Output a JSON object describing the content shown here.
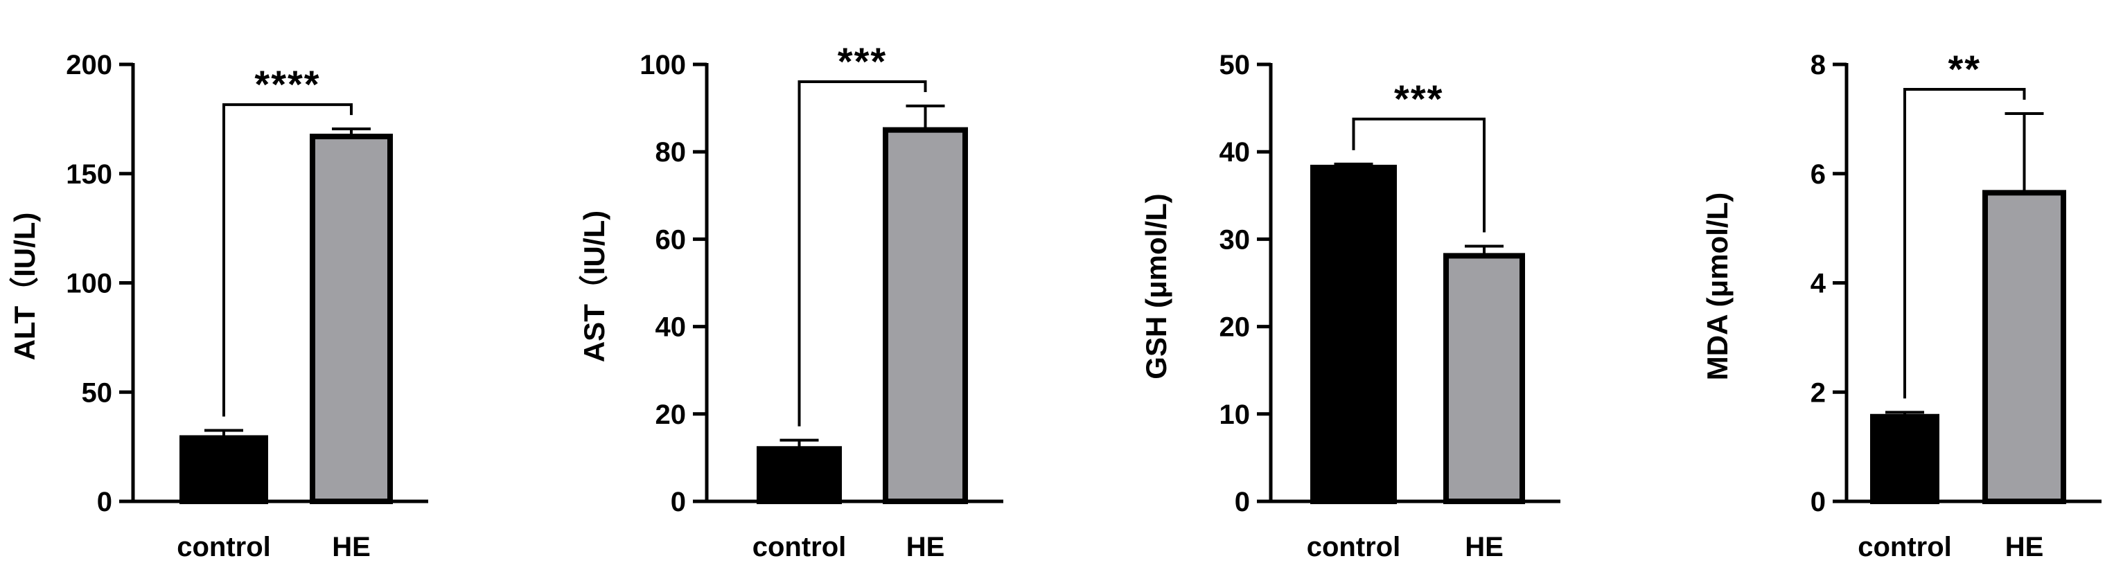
{
  "chart_data": [
    {
      "type": "bar",
      "categories": [
        "control",
        "HE"
      ],
      "values": [
        29,
        167
      ],
      "errors": [
        3.5,
        3.5
      ],
      "ylabel": "ALT（IU/L)",
      "ylim": [
        0,
        200
      ],
      "yticks": [
        0,
        50,
        100,
        150,
        200
      ],
      "significance": "****",
      "bar_colors": [
        "#000000",
        "#a0a0a4"
      ]
    },
    {
      "type": "bar",
      "categories": [
        "control",
        "HE"
      ],
      "values": [
        12,
        85
      ],
      "errors": [
        2,
        5.5
      ],
      "ylabel": "AST（IU/L)",
      "ylim": [
        0,
        100
      ],
      "yticks": [
        0,
        20,
        40,
        60,
        80,
        100
      ],
      "significance": "***",
      "bar_colors": [
        "#000000",
        "#a0a0a4"
      ]
    },
    {
      "type": "bar",
      "categories": [
        "control",
        "HE"
      ],
      "values": [
        38.2,
        28.1
      ],
      "errors": [
        0.4,
        1.1
      ],
      "ylabel": "GSH (μmol/L)",
      "ylim": [
        0,
        50
      ],
      "yticks": [
        0,
        10,
        20,
        30,
        40,
        50
      ],
      "significance": "***",
      "bar_colors": [
        "#000000",
        "#a0a0a4"
      ]
    },
    {
      "type": "bar",
      "categories": [
        "control",
        "HE"
      ],
      "values": [
        1.55,
        5.65
      ],
      "errors": [
        0.08,
        1.45
      ],
      "ylabel": "MDA (μmol/L)",
      "ylim": [
        0,
        8
      ],
      "yticks": [
        0,
        2,
        4,
        6,
        8
      ],
      "significance": "**",
      "bar_colors": [
        "#000000",
        "#a0a0a4"
      ]
    }
  ]
}
